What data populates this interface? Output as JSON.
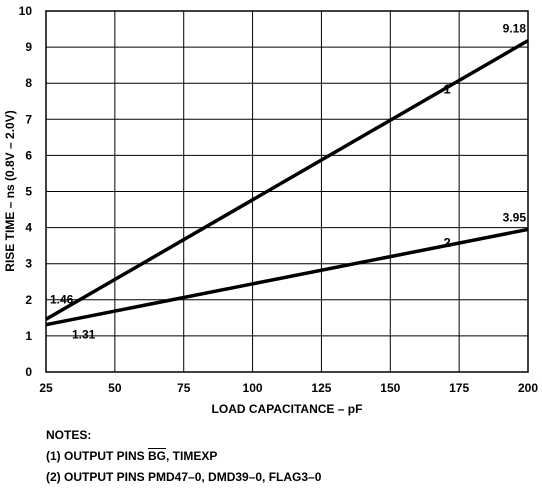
{
  "chart_data": {
    "type": "line",
    "xlabel": "LOAD CAPACITANCE – pF",
    "ylabel": "RISE TIME – ns (0.8V – 2.0V)",
    "xlim": [
      25,
      200
    ],
    "ylim": [
      0,
      10
    ],
    "x_ticks": [
      "25",
      "50",
      "75",
      "100",
      "125",
      "150",
      "175",
      "200"
    ],
    "y_ticks": [
      "0",
      "1",
      "2",
      "3",
      "4",
      "5",
      "6",
      "7",
      "8",
      "9",
      "10"
    ],
    "grid": true,
    "series": [
      {
        "name": "1",
        "x": [
          25,
          200
        ],
        "y": [
          1.46,
          9.18
        ],
        "start_label": "1.46",
        "end_label": "9.18"
      },
      {
        "name": "2",
        "x": [
          25,
          200
        ],
        "y": [
          1.31,
          3.95
        ],
        "start_label": "1.31",
        "end_label": "3.95"
      }
    ]
  },
  "notes": {
    "heading": "NOTES:",
    "note1_prefix": "(1) OUTPUT PINS ",
    "note1_bar": "BG",
    "note1_suffix": ", TIMEXP",
    "note2": "(2) OUTPUT PINS PMD47–0, DMD39–0, FLAG3–0"
  }
}
